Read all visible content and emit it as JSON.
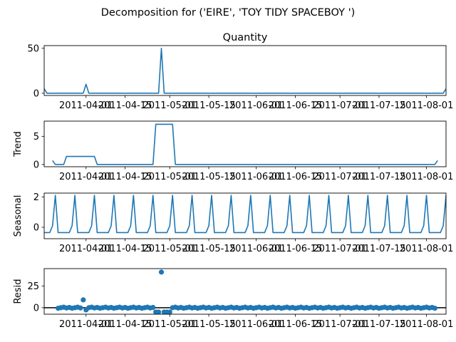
{
  "figure": {
    "suptitle": "Decomposition for ('EIRE', 'TOY TIDY SPACEBOY  ')",
    "line_color": "#1f77b4"
  },
  "chart_data": [
    {
      "type": "line",
      "title": "Quantity",
      "ylabel": "",
      "x_range": [
        "2011-03-17",
        "2011-08-08"
      ],
      "xticks": [
        "2011-04-01",
        "2011-04-15",
        "2011-05-01",
        "2011-05-15",
        "2011-06-01",
        "2011-06-15",
        "2011-07-01",
        "2011-07-15",
        "2011-08-01"
      ],
      "ylim": [
        -2.5,
        53
      ],
      "yticks": [
        0,
        50
      ],
      "x": [
        "2011-03-17",
        "2011-03-18",
        "2011-03-31",
        "2011-04-01",
        "2011-04-02",
        "2011-04-27",
        "2011-04-28",
        "2011-04-29",
        "2011-08-07",
        "2011-08-08"
      ],
      "values": [
        5,
        0,
        0,
        10,
        0,
        0,
        50,
        0,
        0,
        5
      ]
    },
    {
      "type": "line",
      "title": "",
      "ylabel": "Trend",
      "x_range": [
        "2011-03-17",
        "2011-08-08"
      ],
      "xticks": [
        "2011-04-01",
        "2011-04-15",
        "2011-05-01",
        "2011-05-15",
        "2011-06-01",
        "2011-06-15",
        "2011-07-01",
        "2011-07-15",
        "2011-08-01"
      ],
      "ylim": [
        -0.4,
        7.7
      ],
      "yticks": [
        0,
        5
      ],
      "x": [
        "2011-03-20",
        "2011-03-21",
        "2011-03-24",
        "2011-03-25",
        "2011-04-04",
        "2011-04-05",
        "2011-04-25",
        "2011-04-26",
        "2011-05-02",
        "2011-05-03",
        "2011-08-04",
        "2011-08-05"
      ],
      "values": [
        0.7,
        0,
        0,
        1.43,
        1.43,
        0,
        0,
        7.14,
        7.14,
        0,
        0,
        0.7
      ]
    },
    {
      "type": "line",
      "title": "",
      "ylabel": "Seasonal",
      "x_range": [
        "2011-03-17",
        "2011-08-08"
      ],
      "xticks": [
        "2011-04-01",
        "2011-04-15",
        "2011-05-01",
        "2011-05-15",
        "2011-06-01",
        "2011-06-15",
        "2011-07-01",
        "2011-07-15",
        "2011-08-01"
      ],
      "ylim": [
        -0.75,
        2.25
      ],
      "yticks": [
        0,
        2
      ],
      "period_days": 7,
      "cycle_start": "2011-03-17",
      "cycle_values": [
        -0.35,
        -0.35,
        -0.35,
        0.1,
        2.1,
        -0.35,
        -0.35
      ]
    },
    {
      "type": "scatter",
      "title": "",
      "ylabel": "Resid",
      "x_range": [
        "2011-03-17",
        "2011-08-08"
      ],
      "xticks": [
        "2011-04-01",
        "2011-04-15",
        "2011-05-01",
        "2011-05-15",
        "2011-06-01",
        "2011-06-15",
        "2011-07-01",
        "2011-07-15",
        "2011-08-01"
      ],
      "ylim": [
        -7.5,
        45
      ],
      "yticks": [
        0,
        25
      ],
      "zero_line": true,
      "baseline_start": "2011-03-22",
      "baseline_end": "2011-08-04",
      "outliers": [
        {
          "x": "2011-03-31",
          "value": 9
        },
        {
          "x": "2011-04-01",
          "value": -2.5
        },
        {
          "x": "2011-04-26",
          "value": -5
        },
        {
          "x": "2011-04-27",
          "value": -5
        },
        {
          "x": "2011-04-28",
          "value": 41
        },
        {
          "x": "2011-04-29",
          "value": -5
        },
        {
          "x": "2011-04-30",
          "value": -5
        },
        {
          "x": "2011-05-01",
          "value": -5
        }
      ]
    }
  ]
}
